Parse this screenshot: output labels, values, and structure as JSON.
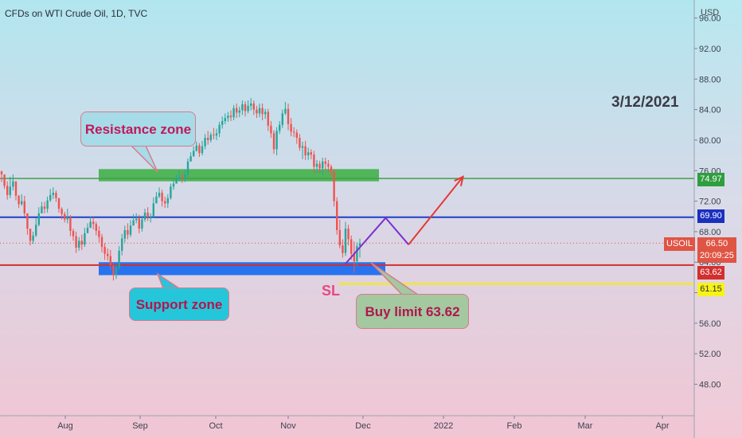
{
  "header": {
    "symbol_title": "CFDs on WTI Crude Oil, 1D, TVC"
  },
  "axis_unit": "USD",
  "annotations": {
    "date": "3/12/2021",
    "resistance_label": "Resistance zone",
    "support_label": "Support zone",
    "buy_label": "Buy limit 63.62",
    "sl_label": "SL"
  },
  "price_tags": {
    "resistance": "74.97",
    "blue_level": "69.90",
    "current_price": "66.50",
    "countdown": "20:09:25",
    "buy_limit": "63.62",
    "stop_loss": "61.15",
    "symbol": "USOIL"
  },
  "colors": {
    "bull": "#26a69a",
    "bear": "#ef5350",
    "resistance_line": "#43a047",
    "blue_line": "#1e3fc9",
    "red_line": "#d32f2f",
    "yellow_line": "#f5f000",
    "support_zone": "#1e6ff0",
    "resistance_zone": "#43b04a",
    "projection_purple": "#7b2fd0",
    "projection_red": "#e53935"
  },
  "chart_data": {
    "type": "candlestick",
    "title": "CFDs on WTI Crude Oil, 1D, TVC",
    "y_ticks": [
      "48.00",
      "52.00",
      "56.00",
      "60.00",
      "64.00",
      "68.00",
      "72.00",
      "76.00",
      "80.00",
      "84.00",
      "88.00",
      "92.00",
      "96.00"
    ],
    "ylim": [
      44.5,
      98.5
    ],
    "x_ticks": [
      "Aug",
      "Sep",
      "Oct",
      "Nov",
      "Dec",
      "2022",
      "Feb",
      "Mar",
      "Apr"
    ],
    "levels": {
      "resistance": 74.97,
      "blue_level": 69.9,
      "buy_limit": 63.62,
      "stop_loss": 61.15,
      "current": 66.5
    },
    "zones": {
      "resistance": {
        "from": 74.6,
        "to": 76.2,
        "start_index": 50,
        "end_index": 180
      },
      "support": {
        "from": 62.3,
        "to": 64.0,
        "start_index": 15,
        "end_index": 184
      }
    },
    "projection": {
      "purple": [
        [
          120,
          63.8
        ],
        [
          134,
          69.8
        ],
        [
          142,
          66.3
        ]
      ],
      "red": [
        [
          142,
          66.3
        ],
        [
          161,
          75.2
        ]
      ]
    },
    "closes": [
      75.5,
      74.0,
      72.8,
      73.9,
      74.6,
      72.7,
      71.6,
      72.0,
      70.4,
      68.4,
      66.8,
      67.5,
      68.9,
      70.4,
      71.3,
      71.0,
      72.1,
      72.8,
      73.1,
      72.4,
      71.0,
      70.3,
      69.6,
      69.9,
      68.1,
      67.4,
      65.9,
      66.8,
      66.3,
      67.8,
      68.5,
      69.3,
      69.0,
      68.1,
      67.3,
      66.0,
      65.1,
      64.8,
      63.6,
      62.3,
      63.3,
      65.5,
      67.1,
      68.2,
      67.6,
      68.8,
      69.5,
      69.7,
      68.4,
      69.6,
      70.5,
      69.9,
      70.0,
      71.7,
      72.6,
      73.1,
      72.0,
      71.7,
      72.4,
      73.9,
      74.3,
      74.9,
      75.2,
      75.0,
      75.5,
      77.2,
      77.9,
      78.6,
      79.3,
      78.3,
      79.2,
      80.3,
      80.0,
      80.7,
      80.6,
      80.9,
      82.0,
      82.5,
      82.9,
      83.2,
      83.0,
      84.2,
      83.6,
      83.9,
      84.7,
      83.8,
      84.5,
      84.8,
      84.0,
      83.5,
      84.2,
      83.4,
      83.7,
      81.9,
      80.9,
      78.8,
      81.2,
      82.0,
      83.5,
      84.1,
      82.1,
      81.1,
      81.0,
      80.3,
      79.0,
      79.2,
      78.0,
      78.4,
      78.1,
      76.5,
      76.9,
      76.3,
      77.2,
      76.9,
      76.5,
      75.9,
      72.0,
      68.2,
      66.2,
      65.2,
      68.4,
      67.0,
      65.1,
      64.1,
      66.1,
      66.5
    ],
    "highs": [
      76.0,
      75.1,
      74.6,
      75.2,
      75.5,
      74.6,
      72.8,
      72.9,
      72.7,
      70.2,
      68.1,
      68.0,
      69.8,
      71.2,
      71.9,
      71.9,
      72.6,
      73.6,
      73.8,
      73.4,
      72.4,
      71.2,
      70.6,
      71.0,
      70.2,
      68.4,
      68.0,
      67.3,
      67.6,
      68.5,
      69.1,
      70.0,
      69.9,
      69.3,
      68.7,
      67.7,
      66.5,
      65.8,
      65.6,
      63.9,
      63.8,
      66.1,
      67.7,
      68.8,
      69.1,
      69.5,
      70.3,
      70.4,
      70.2,
      70.1,
      71.0,
      71.2,
      70.4,
      72.5,
      73.2,
      73.8,
      73.5,
      72.6,
      72.9,
      74.3,
      74.9,
      75.5,
      76.0,
      75.7,
      76.1,
      77.6,
      78.4,
      79.2,
      79.8,
      79.6,
      79.9,
      80.8,
      81.2,
      81.0,
      81.6,
      81.5,
      82.4,
      83.1,
      83.5,
      83.7,
      83.9,
      84.6,
      84.8,
      84.4,
      85.2,
      85.1,
      85.2,
      85.5,
      85.2,
      84.5,
      84.8,
      84.8,
      84.1,
      84.1,
      82.5,
      81.3,
      81.7,
      82.5,
      84.0,
      85.0,
      84.8,
      82.9,
      81.7,
      81.4,
      80.8,
      79.8,
      79.9,
      79.0,
      78.8,
      78.6,
      77.4,
      77.3,
      77.7,
      77.7,
      77.4,
      76.8,
      76.2,
      72.5,
      69.6,
      67.0,
      69.3,
      68.9,
      67.5,
      66.7,
      66.6,
      67.1
    ],
    "lows": [
      74.5,
      73.6,
      72.2,
      72.4,
      73.4,
      72.1,
      71.1,
      71.4,
      70.0,
      67.6,
      66.2,
      66.4,
      67.3,
      68.7,
      70.6,
      70.4,
      70.5,
      71.9,
      72.3,
      71.9,
      70.5,
      69.6,
      69.2,
      69.1,
      67.4,
      66.8,
      65.2,
      65.5,
      65.6,
      66.0,
      67.9,
      68.8,
      68.3,
      67.5,
      66.6,
      65.3,
      64.3,
      64.2,
      63.0,
      61.6,
      61.8,
      63.0,
      64.9,
      66.6,
      67.0,
      67.3,
      68.8,
      69.1,
      67.8,
      68.0,
      69.3,
      69.4,
      69.2,
      69.8,
      71.8,
      72.4,
      71.3,
      71.1,
      71.1,
      72.2,
      73.5,
      74.3,
      74.6,
      74.4,
      74.5,
      75.1,
      77.2,
      77.8,
      78.5,
      77.8,
      78.0,
      78.8,
      79.4,
      79.7,
      80.1,
      80.0,
      80.4,
      81.5,
      82.1,
      82.4,
      82.5,
      82.6,
      82.9,
      83.0,
      83.3,
      83.1,
      83.5,
      83.9,
      83.3,
      82.9,
      83.0,
      82.6,
      82.8,
      81.2,
      80.3,
      78.2,
      78.0,
      80.8,
      81.6,
      83.3,
      81.3,
      80.5,
      80.4,
      79.5,
      78.6,
      77.5,
      77.4,
      77.4,
      77.5,
      75.7,
      75.7,
      75.7,
      75.4,
      76.1,
      75.8,
      75.3,
      71.3,
      67.6,
      65.8,
      64.6,
      64.8,
      66.2,
      64.3,
      62.6,
      63.5,
      64.6
    ],
    "opens": [
      75.9,
      75.5,
      74.0,
      72.8,
      73.9,
      74.6,
      72.7,
      71.6,
      72.0,
      70.4,
      68.4,
      66.8,
      67.5,
      68.9,
      70.4,
      71.3,
      71.0,
      72.1,
      72.8,
      73.1,
      72.4,
      71.0,
      70.3,
      69.6,
      69.9,
      68.1,
      67.4,
      65.9,
      66.8,
      66.3,
      67.8,
      68.5,
      69.3,
      69.0,
      68.1,
      67.3,
      66.0,
      65.1,
      64.8,
      63.6,
      62.3,
      63.3,
      65.5,
      67.1,
      68.2,
      67.6,
      68.8,
      69.5,
      69.7,
      68.4,
      69.6,
      70.5,
      69.9,
      70.0,
      71.7,
      72.6,
      73.1,
      72.0,
      71.7,
      72.4,
      73.9,
      74.3,
      74.9,
      75.2,
      75.0,
      75.5,
      77.2,
      77.9,
      78.6,
      79.3,
      78.3,
      79.2,
      80.3,
      80.0,
      80.7,
      80.6,
      80.9,
      82.0,
      82.5,
      82.9,
      83.2,
      83.0,
      84.2,
      83.6,
      83.9,
      84.7,
      83.8,
      84.5,
      84.8,
      84.0,
      83.5,
      84.2,
      83.4,
      83.7,
      81.9,
      80.9,
      78.8,
      81.2,
      82.0,
      83.5,
      84.1,
      82.1,
      81.1,
      81.0,
      80.3,
      79.0,
      79.2,
      78.0,
      78.4,
      78.1,
      76.5,
      76.9,
      76.3,
      77.2,
      76.9,
      76.5,
      75.9,
      72.0,
      68.2,
      66.2,
      65.2,
      68.4,
      67.0,
      65.1,
      64.1,
      66.1
    ]
  }
}
